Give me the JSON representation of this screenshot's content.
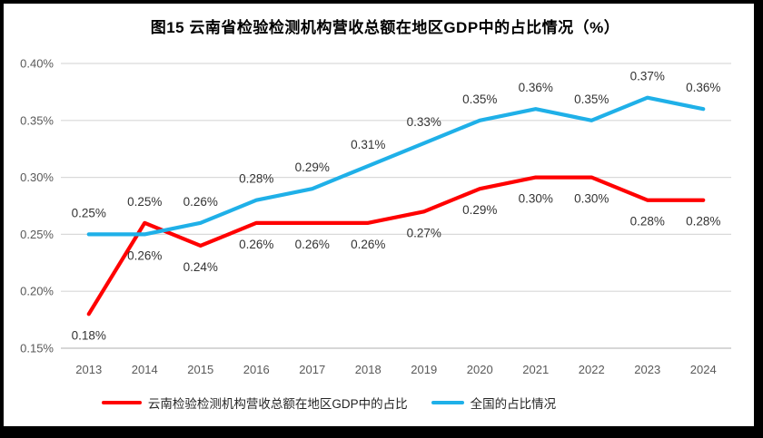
{
  "title": "图15 云南省检验检测机构营收总额在地区GDP中的占比情况（%）",
  "colors": {
    "yunnan_line": "#FF0000",
    "national_line": "#1FB0E8",
    "gridline": "#D9D9D9",
    "axis_line": "#BFBFBF",
    "axis_text": "#595959",
    "data_label_text": "#333333",
    "frame_border": "#000000"
  },
  "chart_data": {
    "type": "line",
    "categories": [
      "2013",
      "2014",
      "2015",
      "2016",
      "2017",
      "2018",
      "2019",
      "2020",
      "2021",
      "2022",
      "2023",
      "2024"
    ],
    "series": [
      {
        "name": "云南检验检测机构营收总额在地区GDP中的占比",
        "color": "#FF0000",
        "label_position": "below",
        "values": [
          0.18,
          0.26,
          0.24,
          0.26,
          0.26,
          0.26,
          0.27,
          0.29,
          0.3,
          0.3,
          0.28,
          0.28
        ],
        "labels": [
          "0.18%",
          "0.26%",
          "0.24%",
          "0.26%",
          "0.26%",
          "0.26%",
          "0.27%",
          "0.29%",
          "0.30%",
          "0.30%",
          "0.28%",
          "0.28%"
        ]
      },
      {
        "name": "全国的占比情况",
        "color": "#1FB0E8",
        "label_position": "above",
        "values": [
          0.25,
          0.25,
          0.26,
          0.28,
          0.29,
          0.31,
          0.33,
          0.35,
          0.36,
          0.35,
          0.37,
          0.36
        ],
        "labels": [
          "0.25%",
          "0.25%",
          "0.26%",
          "0.28%",
          "0.29%",
          "0.31%",
          "0.33%",
          "0.35%",
          "0.36%",
          "0.35%",
          "0.37%",
          "0.36%"
        ]
      }
    ],
    "ylim": [
      0.15,
      0.4
    ],
    "y_ticks": [
      {
        "value": 0.4,
        "label": "0.40%"
      },
      {
        "value": 0.35,
        "label": "0.35%"
      },
      {
        "value": 0.3,
        "label": "0.30%"
      },
      {
        "value": 0.25,
        "label": "0.25%"
      },
      {
        "value": 0.2,
        "label": "0.20%"
      },
      {
        "value": 0.15,
        "label": "0.15%"
      }
    ],
    "grid": true,
    "legend_position": "bottom"
  }
}
